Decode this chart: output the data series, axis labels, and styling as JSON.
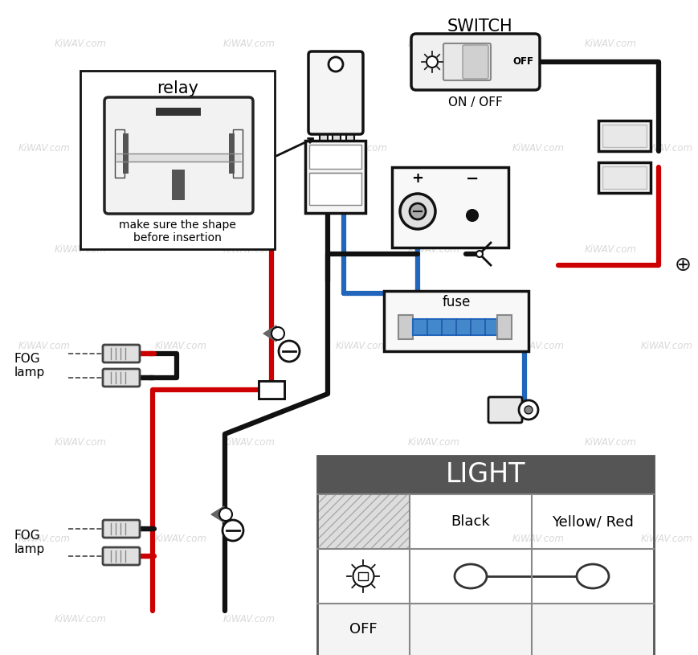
{
  "bg_color": "#ffffff",
  "watermark_text": "KiWAV.com",
  "watermark_color": "#c8c8c8",
  "wire_black": "#111111",
  "wire_red": "#cc0000",
  "wire_blue": "#2266bb",
  "component_border": "#111111",
  "table_header_color": "#555555",
  "table_header_text": "#ffffff",
  "title": "SWITCH",
  "subtitle": "ON / OFF",
  "relay_label": "relay",
  "relay_note": "make sure the shape\nbefore insertion",
  "fuse_label": "fuse",
  "fog_lamp_label": "FOG\nlamp",
  "light_table_title": "LIGHT",
  "table_col1": "Black",
  "table_col2": "Yellow/ Red",
  "table_row_off": "OFF",
  "plus_symbol": "⊕",
  "minus_circle": "⊖"
}
